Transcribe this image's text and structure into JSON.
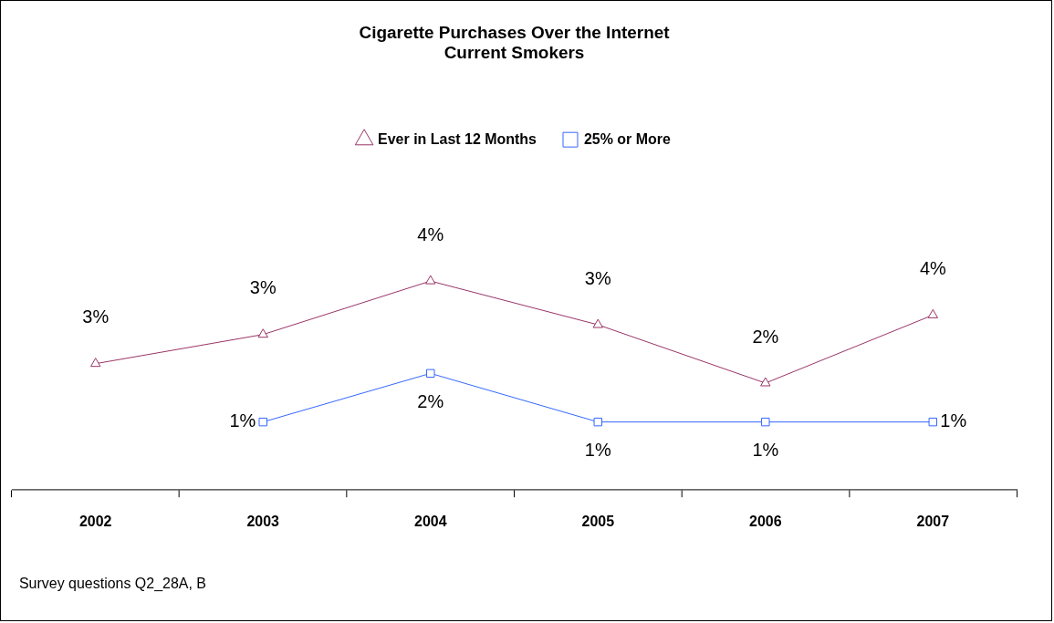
{
  "chart_data": {
    "type": "line",
    "title": "Cigarette Purchases Over the Internet",
    "subtitle": "Current Smokers",
    "categories": [
      "2002",
      "2003",
      "2004",
      "2005",
      "2006",
      "2007"
    ],
    "series": [
      {
        "name": "Ever in Last 12 Months",
        "color": "#993366",
        "marker": "triangle",
        "values": [
          2.6,
          3.2,
          4.3,
          3.4,
          2.2,
          3.6
        ],
        "value_labels": [
          "3%",
          "3%",
          "4%",
          "3%",
          "2%",
          "4%"
        ]
      },
      {
        "name": "25% or More",
        "color": "#3366ff",
        "marker": "square",
        "values": [
          null,
          1.4,
          2.4,
          1.4,
          1.4,
          1.4
        ],
        "value_labels": [
          null,
          "1%",
          "2%",
          "1%",
          "1%",
          "1%"
        ]
      }
    ],
    "grid": false,
    "legend": "top",
    "line_style": "solid",
    "annotations": [
      "Survey questions Q2_28A, B"
    ]
  }
}
